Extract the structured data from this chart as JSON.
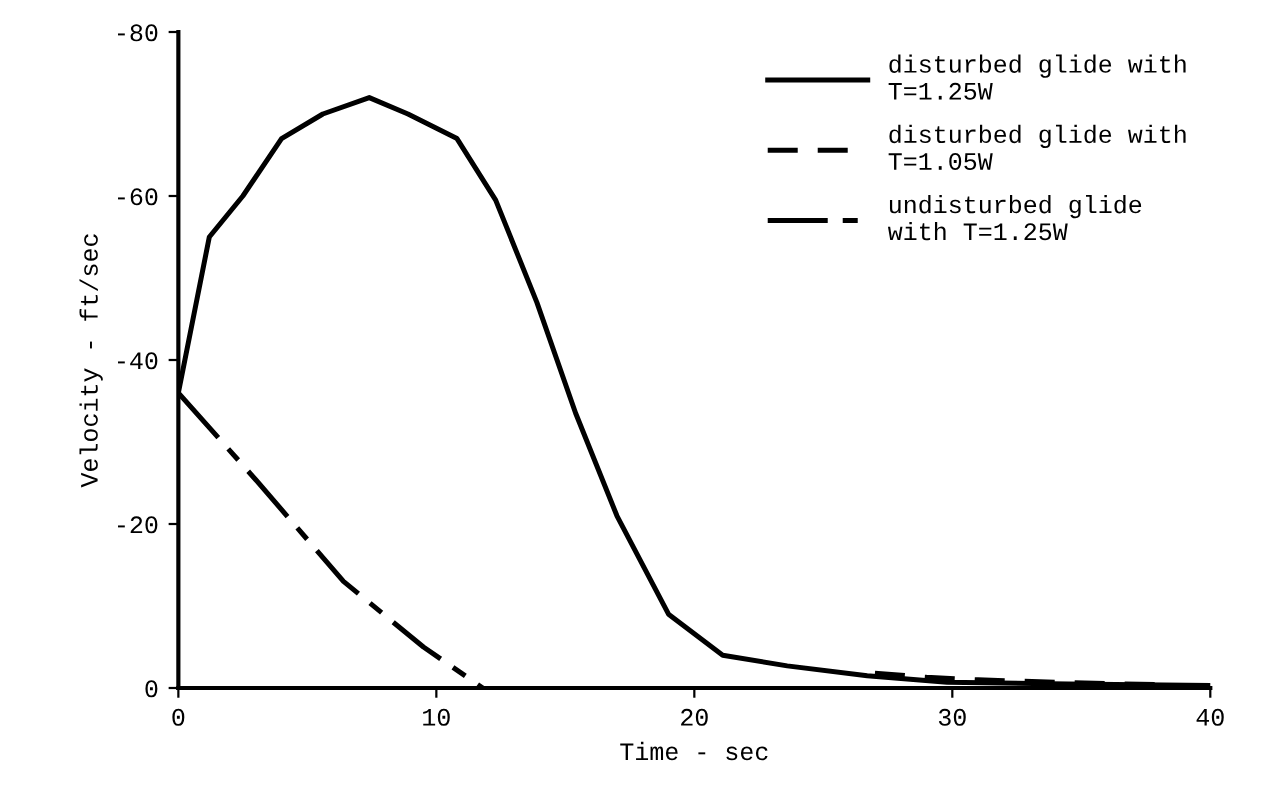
{
  "chart_data": {
    "type": "line",
    "xlabel": "Time - sec",
    "ylabel": "Velocity - ft/sec",
    "xlim": [
      0,
      40
    ],
    "ylim": [
      0,
      -80
    ],
    "xticks": [
      0,
      10,
      20,
      30,
      40
    ],
    "yticks": [
      0,
      -20,
      -40,
      -60,
      -80
    ],
    "grid": false,
    "legend": "top right",
    "marker": "none",
    "series": [
      {
        "name": "disturbed glide with\nT=1.25W",
        "color": "#000000",
        "line_style": "solid",
        "x": [
          0,
          1.2,
          2.5,
          4,
          5.6,
          7.4,
          8.9,
          10.8,
          12.3,
          13.9,
          15.4,
          17,
          19,
          21.1,
          23.6,
          26.7,
          29.8,
          34.5,
          40
        ],
        "values": [
          -36,
          -55,
          -60,
          -67,
          -70,
          -72,
          -70,
          -67,
          -59.5,
          -47,
          -33.5,
          -21,
          -9,
          -4,
          -2.7,
          -1.5,
          -0.7,
          -0.5,
          -0.3
        ]
      },
      {
        "name": "disturbed glide with\nT=1.05W",
        "color": "#000000",
        "line_style": "dashed",
        "x": [
          27,
          29,
          31,
          34,
          38
        ],
        "values": [
          -1.8,
          -1.3,
          -1,
          -0.7,
          -0.4
        ]
      },
      {
        "name": "undisturbed glide\nwith T=1.25W",
        "color": "#000000",
        "line_style": "dashdot",
        "x": [
          0,
          3,
          6.4,
          9.5,
          11.8
        ],
        "values": [
          -36,
          -25.4,
          -13,
          -5,
          0
        ]
      }
    ]
  }
}
